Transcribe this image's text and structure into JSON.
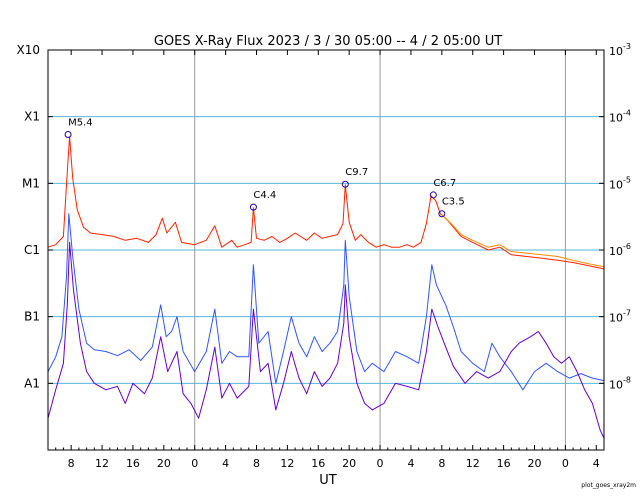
{
  "chart_data": {
    "type": "line",
    "title": "GOES X-Ray Flux   2023 /  3 / 30   05:00 --  4 /  2   05:00   UT",
    "xlabel": "UT",
    "credit": "plot_goes_xray2m",
    "x_start_hours": 5,
    "x_end_hours": 77,
    "xticks": [
      {
        "h": 8,
        "label": "8"
      },
      {
        "h": 12,
        "label": "12"
      },
      {
        "h": 16,
        "label": "16"
      },
      {
        "h": 20,
        "label": "20"
      },
      {
        "h": 24,
        "label": "0"
      },
      {
        "h": 28,
        "label": "4"
      },
      {
        "h": 32,
        "label": "8"
      },
      {
        "h": 36,
        "label": "12"
      },
      {
        "h": 40,
        "label": "16"
      },
      {
        "h": 44,
        "label": "20"
      },
      {
        "h": 48,
        "label": "0"
      },
      {
        "h": 52,
        "label": "4"
      },
      {
        "h": 56,
        "label": "8"
      },
      {
        "h": 60,
        "label": "12"
      },
      {
        "h": 64,
        "label": "16"
      },
      {
        "h": 68,
        "label": "20"
      },
      {
        "h": 72,
        "label": "0"
      },
      {
        "h": 76,
        "label": "4"
      }
    ],
    "day_boundaries_hours": [
      24,
      48,
      72
    ],
    "y_scale": "log",
    "ylim": [
      1e-09,
      0.001
    ],
    "class_levels": [
      {
        "label": "A1",
        "flux": 1e-08
      },
      {
        "label": "B1",
        "flux": 1e-07
      },
      {
        "label": "C1",
        "flux": 1e-06
      },
      {
        "label": "M1",
        "flux": 1e-05
      },
      {
        "label": "X1",
        "flux": 0.0001
      },
      {
        "label": "X10",
        "flux": 0.001
      }
    ],
    "flux_labels": [
      {
        "base": "10",
        "exp": "-3",
        "flux": 0.001
      },
      {
        "base": "10",
        "exp": "-4",
        "flux": 0.0001
      },
      {
        "base": "10",
        "exp": "-5",
        "flux": 1e-05
      },
      {
        "base": "10",
        "exp": "-6",
        "flux": 1e-06
      },
      {
        "base": "10",
        "exp": "-7",
        "flux": 1e-07
      },
      {
        "base": "10",
        "exp": "-8",
        "flux": 1e-08
      }
    ],
    "flares": [
      {
        "label": "M5.4",
        "h": 7.6,
        "flux": 5.4e-05
      },
      {
        "label": "C4.4",
        "h": 31.6,
        "flux": 4.4e-06
      },
      {
        "label": "C9.7",
        "h": 43.5,
        "flux": 9.7e-06
      },
      {
        "label": "C6.7",
        "h": 54.9,
        "flux": 6.7e-06
      },
      {
        "label": "C3.5",
        "h": 56.0,
        "flux": 3.5e-06
      }
    ],
    "series": [
      {
        "color": "#ff2200",
        "points": [
          [
            5.0,
            1.1e-06
          ],
          [
            6.0,
            1.2e-06
          ],
          [
            7.0,
            1.6e-06
          ],
          [
            7.5,
            1.5e-05
          ],
          [
            7.8,
            5e-05
          ],
          [
            8.2,
            1.2e-05
          ],
          [
            8.8,
            4e-06
          ],
          [
            9.6,
            2.2e-06
          ],
          [
            10.5,
            1.8e-06
          ],
          [
            12.0,
            1.7e-06
          ],
          [
            13.5,
            1.6e-06
          ],
          [
            15.0,
            1.4e-06
          ],
          [
            16.5,
            1.5e-06
          ],
          [
            18.0,
            1.3e-06
          ],
          [
            19.0,
            1.7e-06
          ],
          [
            19.8,
            3e-06
          ],
          [
            20.4,
            1.8e-06
          ],
          [
            21.5,
            2.6e-06
          ],
          [
            22.3,
            1.3e-06
          ],
          [
            24.0,
            1.2e-06
          ],
          [
            25.5,
            1.4e-06
          ],
          [
            26.6,
            2.3e-06
          ],
          [
            27.5,
            1.1e-06
          ],
          [
            28.8,
            1.4e-06
          ],
          [
            29.5,
            1.1e-06
          ],
          [
            30.5,
            1.2e-06
          ],
          [
            31.3,
            1.3e-06
          ],
          [
            31.6,
            4.3e-06
          ],
          [
            32.0,
            1.5e-06
          ],
          [
            33.0,
            1.4e-06
          ],
          [
            34.0,
            1.6e-06
          ],
          [
            35.0,
            1.3e-06
          ],
          [
            36.0,
            1.5e-06
          ],
          [
            37.0,
            1.8e-06
          ],
          [
            38.5,
            1.4e-06
          ],
          [
            39.5,
            1.8e-06
          ],
          [
            40.5,
            1.5e-06
          ],
          [
            41.5,
            1.6e-06
          ],
          [
            42.5,
            1.7e-06
          ],
          [
            43.2,
            2.5e-06
          ],
          [
            43.5,
            9.5e-06
          ],
          [
            44.0,
            2.6e-06
          ],
          [
            44.8,
            1.4e-06
          ],
          [
            45.5,
            1.7e-06
          ],
          [
            46.5,
            1.3e-06
          ],
          [
            47.5,
            1.1e-06
          ],
          [
            48.5,
            1.2e-06
          ],
          [
            49.5,
            1.1e-06
          ],
          [
            50.5,
            1.1e-06
          ],
          [
            51.5,
            1.2e-06
          ],
          [
            52.3,
            1.1e-06
          ],
          [
            53.3,
            1.3e-06
          ],
          [
            54.0,
            2.5e-06
          ],
          [
            54.6,
            6.5e-06
          ],
          [
            55.2,
            5.5e-06
          ],
          [
            55.8,
            3.5e-06
          ],
          [
            56.5,
            3e-06
          ],
          [
            57.5,
            2.2e-06
          ],
          [
            58.5,
            1.6e-06
          ],
          [
            60.0,
            1.3e-06
          ],
          [
            62.0,
            1e-06
          ],
          [
            63.5,
            1.1e-06
          ],
          [
            65.0,
            8.5e-07
          ],
          [
            67.0,
            8e-07
          ],
          [
            69.0,
            7.5e-07
          ],
          [
            71.0,
            7e-07
          ],
          [
            73.0,
            6.5e-07
          ],
          [
            75.0,
            5.8e-07
          ],
          [
            77.0,
            5.2e-07
          ]
        ]
      },
      {
        "color": "#ff8800",
        "points": [
          [
            56.0,
            3.4e-06
          ],
          [
            57.5,
            2.3e-06
          ],
          [
            58.5,
            1.7e-06
          ],
          [
            60.0,
            1.4e-06
          ],
          [
            62.0,
            1.1e-06
          ],
          [
            63.5,
            1.2e-06
          ],
          [
            65.0,
            9.5e-07
          ],
          [
            67.0,
            9e-07
          ],
          [
            69.0,
            8.5e-07
          ],
          [
            71.0,
            8e-07
          ],
          [
            73.0,
            7e-07
          ],
          [
            75.0,
            6.2e-07
          ],
          [
            77.0,
            5.6e-07
          ]
        ]
      },
      {
        "color": "#3355ff",
        "points": [
          [
            5.0,
            1.5e-08
          ],
          [
            6.0,
            2.5e-08
          ],
          [
            6.8,
            5e-08
          ],
          [
            7.4,
            4e-07
          ],
          [
            7.7,
            3.5e-06
          ],
          [
            8.2,
            8e-07
          ],
          [
            9.0,
            1.3e-07
          ],
          [
            10.0,
            4e-08
          ],
          [
            11.0,
            3.2e-08
          ],
          [
            12.5,
            3e-08
          ],
          [
            14.0,
            2.6e-08
          ],
          [
            15.5,
            3.2e-08
          ],
          [
            17.0,
            2.2e-08
          ],
          [
            18.5,
            3.5e-08
          ],
          [
            19.6,
            1.5e-07
          ],
          [
            20.3,
            5e-08
          ],
          [
            21.0,
            6e-08
          ],
          [
            21.7,
            1e-07
          ],
          [
            22.5,
            3e-08
          ],
          [
            24.0,
            1.5e-08
          ],
          [
            25.5,
            3e-08
          ],
          [
            26.6,
            1.3e-07
          ],
          [
            27.5,
            2e-08
          ],
          [
            28.5,
            3e-08
          ],
          [
            29.5,
            2.5e-08
          ],
          [
            31.0,
            2.5e-08
          ],
          [
            31.6,
            6e-07
          ],
          [
            32.3,
            4e-08
          ],
          [
            33.5,
            6e-08
          ],
          [
            34.5,
            1e-08
          ],
          [
            35.5,
            3e-08
          ],
          [
            36.5,
            1e-07
          ],
          [
            37.5,
            4e-08
          ],
          [
            38.5,
            2.5e-08
          ],
          [
            39.5,
            5e-08
          ],
          [
            40.5,
            3e-08
          ],
          [
            41.5,
            4e-08
          ],
          [
            42.5,
            6e-08
          ],
          [
            43.3,
            3e-07
          ],
          [
            43.5,
            1.4e-06
          ],
          [
            44.0,
            2e-07
          ],
          [
            45.0,
            3e-08
          ],
          [
            46.0,
            1.5e-08
          ],
          [
            47.0,
            2e-08
          ],
          [
            48.5,
            1.5e-08
          ],
          [
            50.0,
            3e-08
          ],
          [
            51.5,
            2.5e-08
          ],
          [
            53.0,
            2e-08
          ],
          [
            54.0,
            1e-07
          ],
          [
            54.7,
            6e-07
          ],
          [
            55.3,
            3e-07
          ],
          [
            56.5,
            1.5e-07
          ],
          [
            57.5,
            7e-08
          ],
          [
            58.5,
            3e-08
          ],
          [
            60.0,
            2e-08
          ],
          [
            61.5,
            1.5e-08
          ],
          [
            62.5,
            4e-08
          ],
          [
            63.5,
            2.5e-08
          ],
          [
            65.0,
            1.5e-08
          ],
          [
            66.5,
            8e-09
          ],
          [
            68.0,
            1.5e-08
          ],
          [
            69.5,
            2e-08
          ],
          [
            71.0,
            1.5e-08
          ],
          [
            72.5,
            1.2e-08
          ],
          [
            74.0,
            1.4e-08
          ],
          [
            75.5,
            1.2e-08
          ],
          [
            77.0,
            1.1e-08
          ]
        ]
      },
      {
        "color": "#6600cc",
        "points": [
          [
            5.0,
            3e-09
          ],
          [
            6.0,
            8e-09
          ],
          [
            7.0,
            2e-08
          ],
          [
            7.5,
            1.5e-07
          ],
          [
            7.8,
            1.3e-06
          ],
          [
            8.3,
            2.5e-07
          ],
          [
            9.2,
            4e-08
          ],
          [
            10.0,
            1.5e-08
          ],
          [
            11.0,
            1e-08
          ],
          [
            12.5,
            8e-09
          ],
          [
            14.0,
            9e-09
          ],
          [
            15.0,
            5e-09
          ],
          [
            16.0,
            1e-08
          ],
          [
            17.5,
            7e-09
          ],
          [
            18.5,
            1.2e-08
          ],
          [
            19.6,
            5e-08
          ],
          [
            20.5,
            1.5e-08
          ],
          [
            21.7,
            3e-08
          ],
          [
            22.5,
            7e-09
          ],
          [
            23.5,
            5e-09
          ],
          [
            24.5,
            3e-09
          ],
          [
            25.5,
            8e-09
          ],
          [
            26.6,
            3.5e-08
          ],
          [
            27.5,
            6e-09
          ],
          [
            28.5,
            1e-08
          ],
          [
            29.5,
            6e-09
          ],
          [
            31.0,
            9e-09
          ],
          [
            31.6,
            1.3e-07
          ],
          [
            32.5,
            1.5e-08
          ],
          [
            33.5,
            2e-08
          ],
          [
            34.5,
            4e-09
          ],
          [
            35.5,
            1e-08
          ],
          [
            36.5,
            3e-08
          ],
          [
            37.5,
            1.2e-08
          ],
          [
            38.5,
            7e-09
          ],
          [
            39.5,
            1.5e-08
          ],
          [
            40.5,
            9e-09
          ],
          [
            41.5,
            1.2e-08
          ],
          [
            42.5,
            2e-08
          ],
          [
            43.3,
            8e-08
          ],
          [
            43.5,
            3e-07
          ],
          [
            44.0,
            5e-08
          ],
          [
            45.0,
            1e-08
          ],
          [
            46.0,
            5e-09
          ],
          [
            47.0,
            4e-09
          ],
          [
            48.5,
            5e-09
          ],
          [
            50.0,
            1e-08
          ],
          [
            51.5,
            9e-09
          ],
          [
            53.0,
            8e-09
          ],
          [
            54.0,
            3e-08
          ],
          [
            54.7,
            1.3e-07
          ],
          [
            55.5,
            7e-08
          ],
          [
            56.5,
            3.5e-08
          ],
          [
            57.5,
            1.8e-08
          ],
          [
            59.0,
            1e-08
          ],
          [
            60.5,
            1.5e-08
          ],
          [
            62.0,
            1.2e-08
          ],
          [
            63.5,
            1.5e-08
          ],
          [
            65.0,
            3e-08
          ],
          [
            66.0,
            4e-08
          ],
          [
            67.5,
            5e-08
          ],
          [
            68.5,
            6e-08
          ],
          [
            69.5,
            4e-08
          ],
          [
            70.5,
            2.5e-08
          ],
          [
            71.5,
            2e-08
          ],
          [
            72.5,
            2.5e-08
          ],
          [
            73.5,
            1.5e-08
          ],
          [
            74.5,
            8e-09
          ],
          [
            75.5,
            5e-09
          ],
          [
            76.5,
            2e-09
          ],
          [
            77.0,
            1.5e-09
          ]
        ]
      }
    ]
  }
}
